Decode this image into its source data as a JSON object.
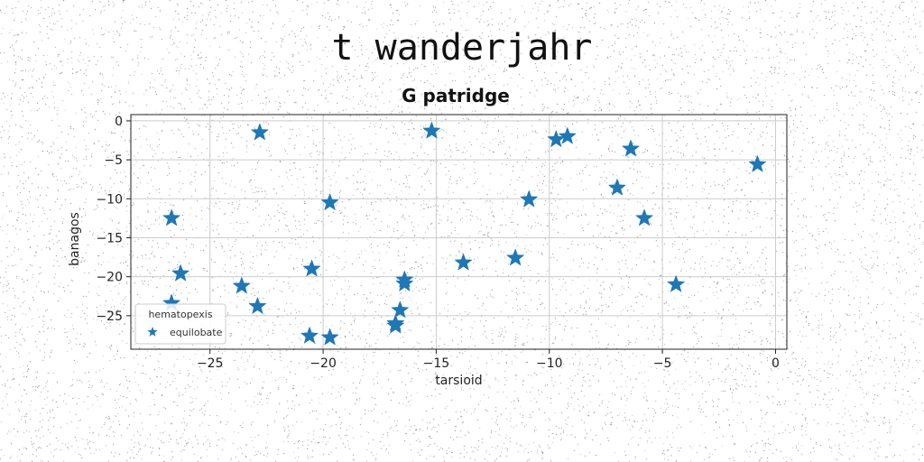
{
  "figure": {
    "suptitle": "t wanderjahr"
  },
  "chart_data": {
    "type": "scatter",
    "title": "G patridge",
    "xlabel": "tarsioid",
    "ylabel": "banagos",
    "xlim": [
      -28.5,
      0.5
    ],
    "ylim": [
      -29.3,
      0.8
    ],
    "xticks": [
      -25,
      -20,
      -15,
      -10,
      -5,
      0
    ],
    "yticks": [
      0,
      -5,
      -10,
      -15,
      -20,
      -25
    ],
    "grid": true,
    "legend": {
      "title": "hematopexis",
      "placement": "lower-left"
    },
    "series": [
      {
        "name": "equilobate",
        "color": "#1f77b4",
        "marker": "star",
        "points": [
          {
            "x": -22.8,
            "y": -1.5
          },
          {
            "x": -15.2,
            "y": -1.3
          },
          {
            "x": -9.7,
            "y": -2.4
          },
          {
            "x": -9.2,
            "y": -2.0
          },
          {
            "x": -6.4,
            "y": -3.6
          },
          {
            "x": -0.8,
            "y": -5.6
          },
          {
            "x": -7.0,
            "y": -8.6
          },
          {
            "x": -10.9,
            "y": -10.1
          },
          {
            "x": -19.7,
            "y": -10.5
          },
          {
            "x": -26.7,
            "y": -12.5
          },
          {
            "x": -5.8,
            "y": -12.5
          },
          {
            "x": -11.5,
            "y": -17.6
          },
          {
            "x": -13.8,
            "y": -18.2
          },
          {
            "x": -20.5,
            "y": -19.0
          },
          {
            "x": -26.3,
            "y": -19.6
          },
          {
            "x": -16.4,
            "y": -20.4
          },
          {
            "x": -16.4,
            "y": -20.9
          },
          {
            "x": -4.4,
            "y": -21.0
          },
          {
            "x": -23.6,
            "y": -21.2
          },
          {
            "x": -26.7,
            "y": -23.4
          },
          {
            "x": -22.9,
            "y": -23.8
          },
          {
            "x": -16.6,
            "y": -24.3
          },
          {
            "x": -16.8,
            "y": -26.0
          },
          {
            "x": -16.8,
            "y": -26.3
          },
          {
            "x": -20.6,
            "y": -27.6
          },
          {
            "x": -19.7,
            "y": -27.8
          }
        ]
      }
    ]
  }
}
